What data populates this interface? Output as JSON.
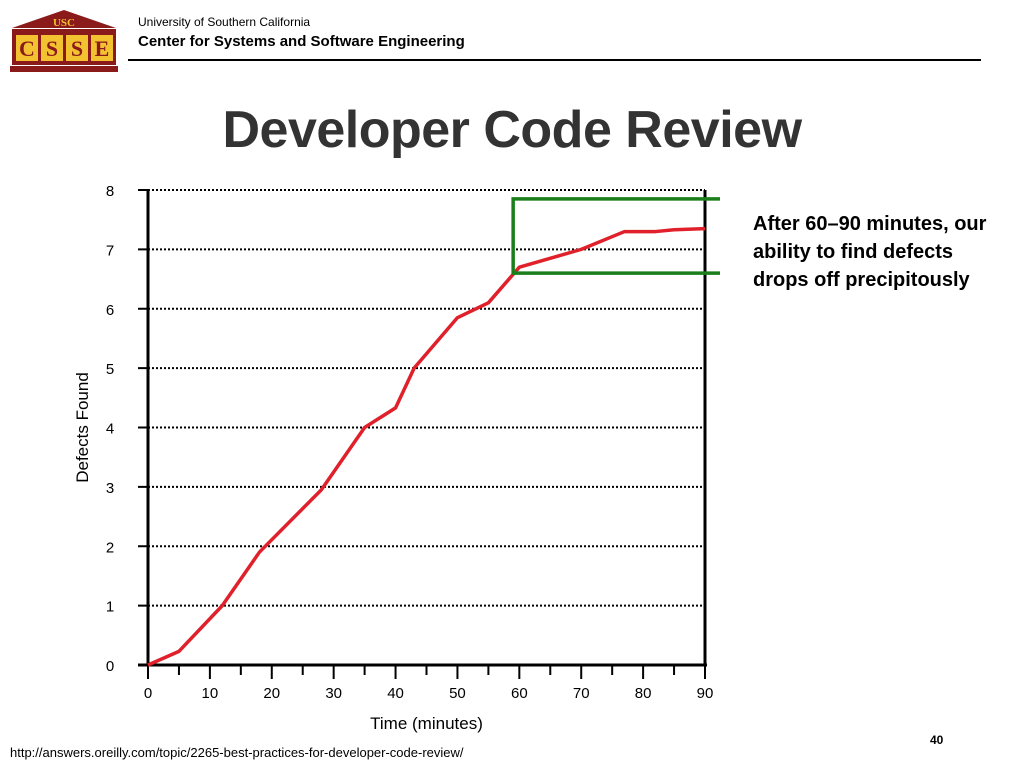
{
  "header": {
    "university": "University of Southern California",
    "center": "Center for Systems and Software Engineering",
    "logo_top_text": "USC",
    "logo_letters": [
      "C",
      "S",
      "S",
      "E"
    ],
    "logo_color": "#8b1a1a",
    "logo_letter_bg": "#f2c230"
  },
  "slide": {
    "title": "Developer Code Review",
    "callout": "After 60–90 minutes, our ability to find defects drops off precipitously",
    "source": "http://answers.oreilly.com/topic/2265-best-practices-for-developer-code-review/",
    "page_number": "40"
  },
  "chart_data": {
    "type": "line",
    "xlabel": "Time (minutes)",
    "ylabel": "Defects Found",
    "xlim": [
      0,
      90
    ],
    "ylim": [
      0,
      8
    ],
    "xticks": [
      0,
      10,
      20,
      30,
      40,
      50,
      60,
      70,
      80,
      90
    ],
    "yticks": [
      0,
      1,
      2,
      3,
      4,
      5,
      6,
      7,
      8
    ],
    "grid": "horizontal dotted",
    "line_color": "#e0202a",
    "highlight_color": "#1a7f1a",
    "highlight_box": {
      "x_range": [
        59,
        94
      ],
      "y_range": [
        6.6,
        7.85
      ]
    },
    "series": [
      {
        "x": [
          0,
          5,
          12,
          18,
          28,
          35,
          40,
          43,
          50,
          55,
          60,
          70,
          77,
          82,
          85,
          90
        ],
        "values": [
          0,
          0.23,
          1.0,
          1.9,
          2.95,
          4.0,
          4.33,
          5.0,
          5.85,
          6.1,
          6.7,
          7.0,
          7.3,
          7.3,
          7.33,
          7.35
        ]
      }
    ]
  }
}
